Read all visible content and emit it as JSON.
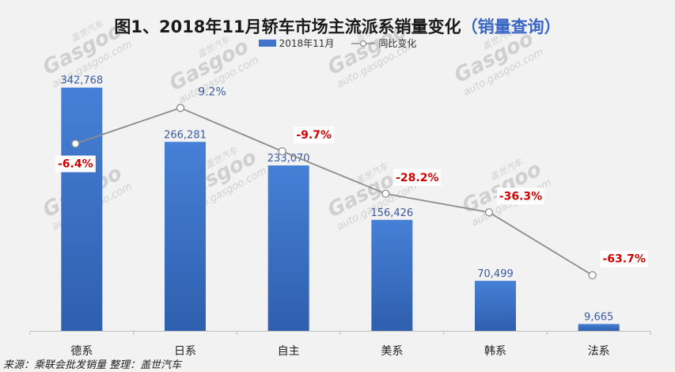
{
  "chart_data": {
    "type": "bar",
    "title": "图1、2018年11月轿车市场主流派系销量变化",
    "subtitle": "（销量查询）",
    "categories": [
      "德系",
      "日系",
      "自主",
      "美系",
      "韩系",
      "法系"
    ],
    "series": [
      {
        "name": "2018年11月",
        "type": "bar",
        "values": [
          342768,
          266281,
          233070,
          156426,
          70499,
          9665
        ],
        "labels": [
          "342,768",
          "266,281",
          "233,070",
          "156,426",
          "70,499",
          "9,665"
        ],
        "color": "#3f74c9"
      },
      {
        "name": "同比变化",
        "type": "line",
        "values": [
          -6.4,
          9.2,
          -9.7,
          -28.2,
          -36.3,
          -63.7
        ],
        "labels": [
          "-6.4%",
          "9.2%",
          "-9.7%",
          "-28.2%",
          "-36.3%",
          "-63.7%"
        ],
        "color": "#8c8c8c"
      }
    ],
    "ylim": [
      0,
      360000
    ],
    "y2lim": [
      -80,
      20
    ],
    "grid": false,
    "legend": "top-center",
    "colors": {
      "negative_label": "#d40000",
      "positive_label": "#3a5aa0",
      "bar_label": "#3a5aa0"
    }
  },
  "watermark": {
    "text_cn": "盖世汽车",
    "text_en": "Gasgoo",
    "text_url": "auto.gasgoo.com"
  },
  "source": "来源：乘联会批发销量 整理：盖世汽车"
}
